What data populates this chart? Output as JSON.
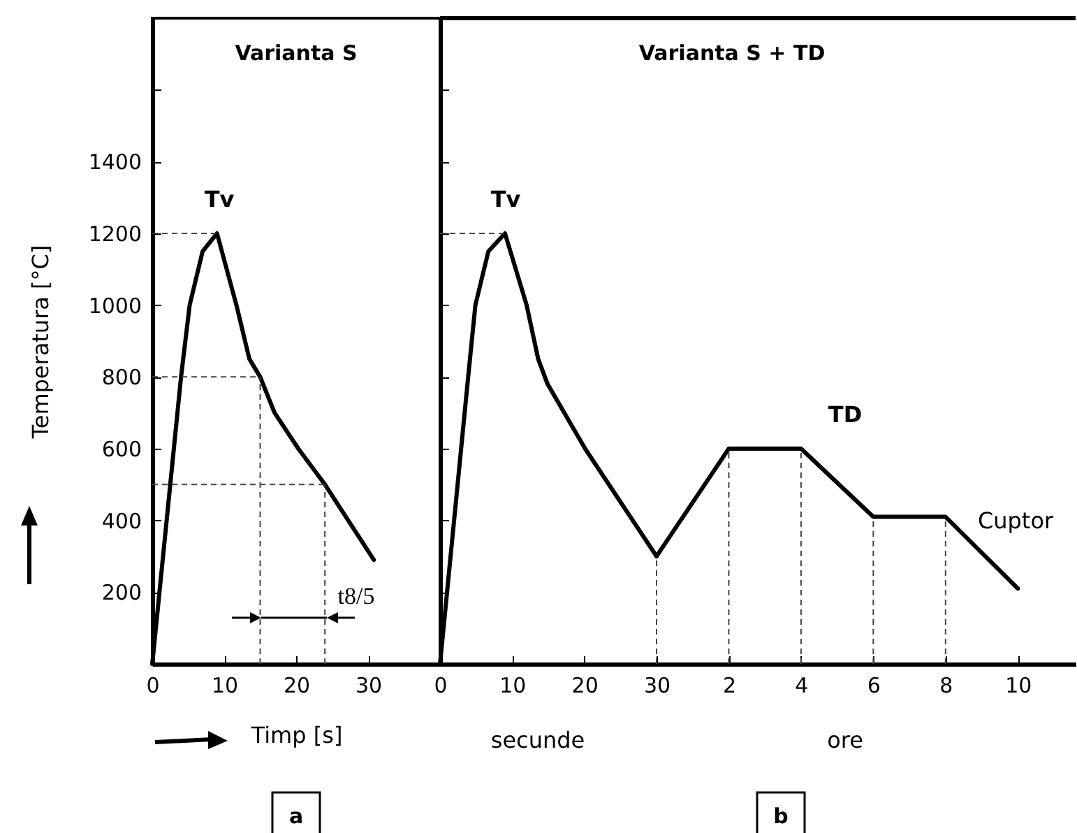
{
  "chart_data": [
    {
      "type": "line",
      "title": "Varianta S",
      "xlabel": "Timp [s]",
      "ylabel": "Temperatura [°C]",
      "xlim": [
        0,
        40
      ],
      "ylim": [
        0,
        1800
      ],
      "xticks": [
        0,
        10,
        20,
        30
      ],
      "yticks": [
        200,
        400,
        600,
        800,
        1000,
        1200,
        1400,
        {
          "value": 1600,
          "label": null
        }
      ],
      "series": [
        {
          "color": "#000000",
          "x": [
            0,
            4,
            5.2,
            7,
            9,
            11.7,
            13.5,
            15,
            17,
            20.3,
            24,
            30.8
          ],
          "values": [
            0,
            800,
            1000,
            1150,
            1200,
            1000,
            850,
            800,
            700,
            600,
            500,
            290
          ]
        }
      ],
      "ref_lines": [
        {
          "axis": "y",
          "value": 1200,
          "line_style": "dashed"
        },
        {
          "axis": "y",
          "value": 800,
          "line_style": "dashed"
        },
        {
          "axis": "y",
          "value": 500,
          "line_style": "dashed"
        },
        {
          "axis": "x",
          "value": 15,
          "line_style": "dashed"
        },
        {
          "axis": "x",
          "value": 24,
          "line_style": "dashed"
        }
      ],
      "annotations": [
        "Tv",
        "t8/5",
        "a"
      ]
    },
    {
      "type": "line",
      "xlim": [
        0,
        30
      ],
      "ylim": [
        0,
        1800
      ],
      "xticks": [
        0,
        10,
        20,
        30
      ],
      "yticks": [
        200,
        400,
        600,
        800,
        1000,
        1200,
        1400,
        1600
      ],
      "tick_labels": "x",
      "series": [
        {
          "color": "#000000",
          "x": [
            0,
            3.9,
            4.9,
            6.7,
            9,
            12,
            13.6,
            14.9,
            20.1,
            30
          ],
          "values": [
            0,
            800,
            1000,
            1150,
            1200,
            1000,
            850,
            780,
            600,
            300
          ]
        }
      ],
      "ref_lines": [
        {
          "axis": "y",
          "value": 1200,
          "line_style": "dashed"
        },
        {
          "axis": "x",
          "value": 30,
          "line_style": "dashed"
        }
      ],
      "annotations": [
        "Tv",
        "secunde"
      ]
    },
    {
      "type": "line",
      "title": "Varianta S + TD",
      "xlim": [
        0,
        11.6
      ],
      "ylim": [
        0,
        1800
      ],
      "xticks": [
        2,
        4,
        6,
        8,
        10
      ],
      "tick_labels": "x",
      "series": [
        {
          "color": "#000000",
          "x": [
            0,
            2,
            4,
            6,
            8,
            10
          ],
          "values": [
            300,
            600,
            600,
            410,
            410,
            210
          ]
        }
      ],
      "ref_lines": [
        {
          "axis": "x",
          "value": 2,
          "line_style": "dashed"
        },
        {
          "axis": "x",
          "value": 4,
          "line_style": "dashed"
        },
        {
          "axis": "x",
          "value": 6,
          "line_style": "dashed"
        },
        {
          "axis": "x",
          "value": 8,
          "line_style": "dashed"
        }
      ],
      "annotations": [
        "TD",
        "Cuptor",
        "ore",
        "b"
      ]
    }
  ]
}
